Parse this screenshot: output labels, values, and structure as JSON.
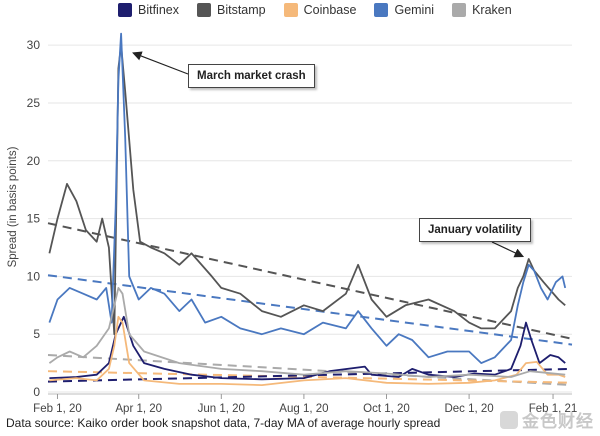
{
  "chart_data": {
    "type": "line",
    "ylabel": "Spread (in basis points)",
    "xlabel": "",
    "ylim": [
      0,
      32
    ],
    "yticks": [
      0,
      5,
      10,
      15,
      20,
      25,
      30
    ],
    "xlim": [
      "2020-01-25",
      "2021-02-15"
    ],
    "xticks": [
      {
        "date": "2020-02-01",
        "label": "Feb 1, 20"
      },
      {
        "date": "2020-04-01",
        "label": "Apr 1, 20"
      },
      {
        "date": "2020-06-01",
        "label": "Jun 1, 20"
      },
      {
        "date": "2020-08-01",
        "label": "Aug 1, 20"
      },
      {
        "date": "2020-10-01",
        "label": "Oct 1, 20"
      },
      {
        "date": "2020-12-01",
        "label": "Dec 1, 20"
      },
      {
        "date": "2021-02-01",
        "label": "Feb 1, 21"
      }
    ],
    "grid": "horizontal",
    "legend_position": "top",
    "series": [
      {
        "name": "Bitfinex",
        "color": "#1e1e6e",
        "points": [
          [
            "2020-01-26",
            1.2
          ],
          [
            "2020-02-15",
            1.3
          ],
          [
            "2020-03-01",
            1.5
          ],
          [
            "2020-03-10",
            2.5
          ],
          [
            "2020-03-15",
            5.0
          ],
          [
            "2020-03-21",
            6.5
          ],
          [
            "2020-03-28",
            4.0
          ],
          [
            "2020-04-05",
            2.5
          ],
          [
            "2020-04-20",
            2.0
          ],
          [
            "2020-05-10",
            1.5
          ],
          [
            "2020-06-01",
            1.2
          ],
          [
            "2020-07-01",
            1.1
          ],
          [
            "2020-08-01",
            1.2
          ],
          [
            "2020-08-20",
            1.8
          ],
          [
            "2020-09-15",
            2.2
          ],
          [
            "2020-09-20",
            1.5
          ],
          [
            "2020-10-10",
            1.3
          ],
          [
            "2020-10-20",
            2.0
          ],
          [
            "2020-11-01",
            1.5
          ],
          [
            "2020-11-20",
            1.3
          ],
          [
            "2020-12-05",
            1.6
          ],
          [
            "2020-12-20",
            1.5
          ],
          [
            "2021-01-01",
            2.0
          ],
          [
            "2021-01-08",
            4.0
          ],
          [
            "2021-01-12",
            6.0
          ],
          [
            "2021-01-16",
            4.5
          ],
          [
            "2021-01-22",
            2.5
          ],
          [
            "2021-01-30",
            3.2
          ],
          [
            "2021-02-05",
            3.0
          ],
          [
            "2021-02-10",
            2.5
          ]
        ]
      },
      {
        "name": "Bitstamp",
        "color": "#555555",
        "points": [
          [
            "2020-01-26",
            12.0
          ],
          [
            "2020-02-01",
            15.0
          ],
          [
            "2020-02-08",
            18.0
          ],
          [
            "2020-02-15",
            16.5
          ],
          [
            "2020-02-22",
            14.0
          ],
          [
            "2020-03-01",
            13.0
          ],
          [
            "2020-03-05",
            15.0
          ],
          [
            "2020-03-10",
            12.5
          ],
          [
            "2020-03-14",
            5.0
          ],
          [
            "2020-03-17",
            28.0
          ],
          [
            "2020-03-19",
            30.0
          ],
          [
            "2020-03-22",
            26.0
          ],
          [
            "2020-03-28",
            17.5
          ],
          [
            "2020-04-02",
            13.0
          ],
          [
            "2020-04-10",
            12.5
          ],
          [
            "2020-04-20",
            12.0
          ],
          [
            "2020-05-01",
            11.0
          ],
          [
            "2020-05-10",
            12.0
          ],
          [
            "2020-05-25",
            10.0
          ],
          [
            "2020-06-01",
            9.0
          ],
          [
            "2020-06-15",
            8.5
          ],
          [
            "2020-07-01",
            7.0
          ],
          [
            "2020-07-15",
            6.5
          ],
          [
            "2020-08-01",
            7.5
          ],
          [
            "2020-08-15",
            7.0
          ],
          [
            "2020-09-01",
            8.5
          ],
          [
            "2020-09-10",
            11.0
          ],
          [
            "2020-09-20",
            8.0
          ],
          [
            "2020-10-01",
            6.5
          ],
          [
            "2020-10-15",
            7.5
          ],
          [
            "2020-11-01",
            8.0
          ],
          [
            "2020-11-20",
            7.0
          ],
          [
            "2020-12-01",
            6.0
          ],
          [
            "2020-12-10",
            5.5
          ],
          [
            "2020-12-20",
            5.5
          ],
          [
            "2021-01-01",
            7.0
          ],
          [
            "2021-01-06",
            9.0
          ],
          [
            "2021-01-10",
            10.0
          ],
          [
            "2021-01-14",
            11.5
          ],
          [
            "2021-01-18",
            10.5
          ],
          [
            "2021-01-25",
            9.5
          ],
          [
            "2021-02-05",
            8.0
          ],
          [
            "2021-02-10",
            7.5
          ]
        ]
      },
      {
        "name": "Coinbase",
        "color": "#f5b97a",
        "points": [
          [
            "2020-01-26",
            1.0
          ],
          [
            "2020-02-15",
            1.2
          ],
          [
            "2020-03-01",
            1.0
          ],
          [
            "2020-03-10",
            2.0
          ],
          [
            "2020-03-14",
            4.0
          ],
          [
            "2020-03-17",
            6.5
          ],
          [
            "2020-03-20",
            6.0
          ],
          [
            "2020-03-25",
            2.5
          ],
          [
            "2020-04-05",
            1.0
          ],
          [
            "2020-05-01",
            0.7
          ],
          [
            "2020-06-01",
            0.7
          ],
          [
            "2020-07-01",
            0.6
          ],
          [
            "2020-08-01",
            1.0
          ],
          [
            "2020-09-01",
            1.2
          ],
          [
            "2020-10-01",
            0.8
          ],
          [
            "2020-11-01",
            0.7
          ],
          [
            "2020-12-01",
            0.8
          ],
          [
            "2020-12-20",
            1.0
          ],
          [
            "2021-01-05",
            1.5
          ],
          [
            "2021-01-12",
            2.5
          ],
          [
            "2021-01-20",
            2.6
          ],
          [
            "2021-01-28",
            1.5
          ],
          [
            "2021-02-05",
            1.5
          ],
          [
            "2021-02-10",
            1.3
          ]
        ]
      },
      {
        "name": "Gemini",
        "color": "#4a78c0",
        "points": [
          [
            "2020-01-26",
            6.0
          ],
          [
            "2020-02-01",
            8.0
          ],
          [
            "2020-02-10",
            9.0
          ],
          [
            "2020-02-20",
            8.5
          ],
          [
            "2020-03-01",
            8.0
          ],
          [
            "2020-03-08",
            9.0
          ],
          [
            "2020-03-12",
            6.0
          ],
          [
            "2020-03-15",
            16.0
          ],
          [
            "2020-03-17",
            27.0
          ],
          [
            "2020-03-19",
            31.0
          ],
          [
            "2020-03-22",
            22.0
          ],
          [
            "2020-03-25",
            10.0
          ],
          [
            "2020-04-01",
            8.0
          ],
          [
            "2020-04-10",
            9.0
          ],
          [
            "2020-04-20",
            8.5
          ],
          [
            "2020-05-01",
            7.0
          ],
          [
            "2020-05-10",
            8.0
          ],
          [
            "2020-05-20",
            6.0
          ],
          [
            "2020-06-01",
            6.5
          ],
          [
            "2020-06-15",
            5.5
          ],
          [
            "2020-07-01",
            5.0
          ],
          [
            "2020-07-15",
            5.5
          ],
          [
            "2020-08-01",
            5.0
          ],
          [
            "2020-08-15",
            6.0
          ],
          [
            "2020-09-01",
            5.5
          ],
          [
            "2020-09-10",
            7.0
          ],
          [
            "2020-09-20",
            5.5
          ],
          [
            "2020-10-01",
            4.0
          ],
          [
            "2020-10-10",
            5.0
          ],
          [
            "2020-10-20",
            4.5
          ],
          [
            "2020-11-01",
            3.0
          ],
          [
            "2020-11-15",
            3.5
          ],
          [
            "2020-12-01",
            3.5
          ],
          [
            "2020-12-10",
            2.5
          ],
          [
            "2020-12-20",
            3.0
          ],
          [
            "2021-01-01",
            4.5
          ],
          [
            "2021-01-06",
            7.5
          ],
          [
            "2021-01-10",
            9.5
          ],
          [
            "2021-01-14",
            11.0
          ],
          [
            "2021-01-18",
            10.5
          ],
          [
            "2021-01-23",
            9.0
          ],
          [
            "2021-01-28",
            8.0
          ],
          [
            "2021-02-03",
            9.5
          ],
          [
            "2021-02-08",
            10.0
          ],
          [
            "2021-02-10",
            9.0
          ]
        ]
      },
      {
        "name": "Kraken",
        "color": "#aaaaaa",
        "points": [
          [
            "2020-01-26",
            2.5
          ],
          [
            "2020-02-01",
            3.0
          ],
          [
            "2020-02-10",
            3.5
          ],
          [
            "2020-02-20",
            3.0
          ],
          [
            "2020-03-01",
            4.0
          ],
          [
            "2020-03-10",
            5.5
          ],
          [
            "2020-03-15",
            8.0
          ],
          [
            "2020-03-17",
            9.0
          ],
          [
            "2020-03-20",
            8.5
          ],
          [
            "2020-03-25",
            5.0
          ],
          [
            "2020-04-05",
            3.5
          ],
          [
            "2020-05-01",
            2.5
          ],
          [
            "2020-06-01",
            2.0
          ],
          [
            "2020-07-01",
            1.8
          ],
          [
            "2020-08-01",
            1.5
          ],
          [
            "2020-09-01",
            1.8
          ],
          [
            "2020-10-01",
            1.6
          ],
          [
            "2020-11-01",
            1.3
          ],
          [
            "2020-12-01",
            1.5
          ],
          [
            "2021-01-01",
            1.3
          ],
          [
            "2021-01-15",
            1.8
          ],
          [
            "2021-02-10",
            1.5
          ]
        ]
      }
    ],
    "trendlines": [
      {
        "series": "Bitstamp",
        "color": "#555555",
        "points": [
          [
            "2020-01-25",
            14.6
          ],
          [
            "2021-02-15",
            4.6
          ]
        ]
      },
      {
        "series": "Gemini",
        "color": "#4a78c0",
        "points": [
          [
            "2020-01-25",
            10.1
          ],
          [
            "2021-02-15",
            4.1
          ]
        ]
      },
      {
        "series": "Kraken",
        "color": "#aaaaaa",
        "points": [
          [
            "2020-01-25",
            3.2
          ],
          [
            "2021-02-15",
            0.6
          ]
        ]
      },
      {
        "series": "Coinbase",
        "color": "#f5b97a",
        "points": [
          [
            "2020-01-25",
            1.8
          ],
          [
            "2021-02-15",
            0.8
          ]
        ]
      },
      {
        "series": "Bitfinex",
        "color": "#1e1e6e",
        "points": [
          [
            "2020-01-25",
            0.9
          ],
          [
            "2021-02-15",
            2.0
          ]
        ]
      }
    ],
    "annotations": [
      {
        "text": "March market crash",
        "target": [
          "2020-03-22",
          29.5
        ]
      },
      {
        "text": "January volatility",
        "target": [
          "2021-01-12",
          11.2
        ]
      }
    ]
  },
  "footer": {
    "source": "Data source: Kaiko order book snapshot data, 7-day MA of average hourly spread",
    "watermark": "金色财经"
  }
}
